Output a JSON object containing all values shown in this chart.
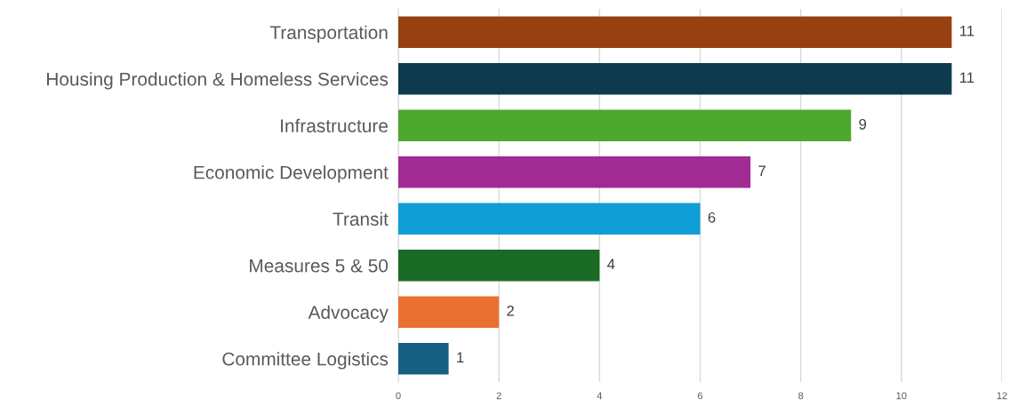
{
  "chart_data": {
    "type": "bar",
    "orientation": "horizontal",
    "categories": [
      "Transportation",
      "Housing Production & Homeless Services",
      "Infrastructure",
      "Economic Development",
      "Transit",
      "Measures 5 & 50",
      "Advocacy",
      "Committee Logistics"
    ],
    "values": [
      11,
      11,
      9,
      7,
      6,
      4,
      2,
      1
    ],
    "colors": [
      "#984010",
      "#0e3a4f",
      "#4ea72e",
      "#a02b93",
      "#0f9ed5",
      "#196b24",
      "#e97132",
      "#156082"
    ],
    "xlim": [
      0,
      12
    ],
    "xticks": [
      0,
      2,
      4,
      6,
      8,
      10,
      12
    ],
    "grid": "x",
    "data_labels": true
  }
}
